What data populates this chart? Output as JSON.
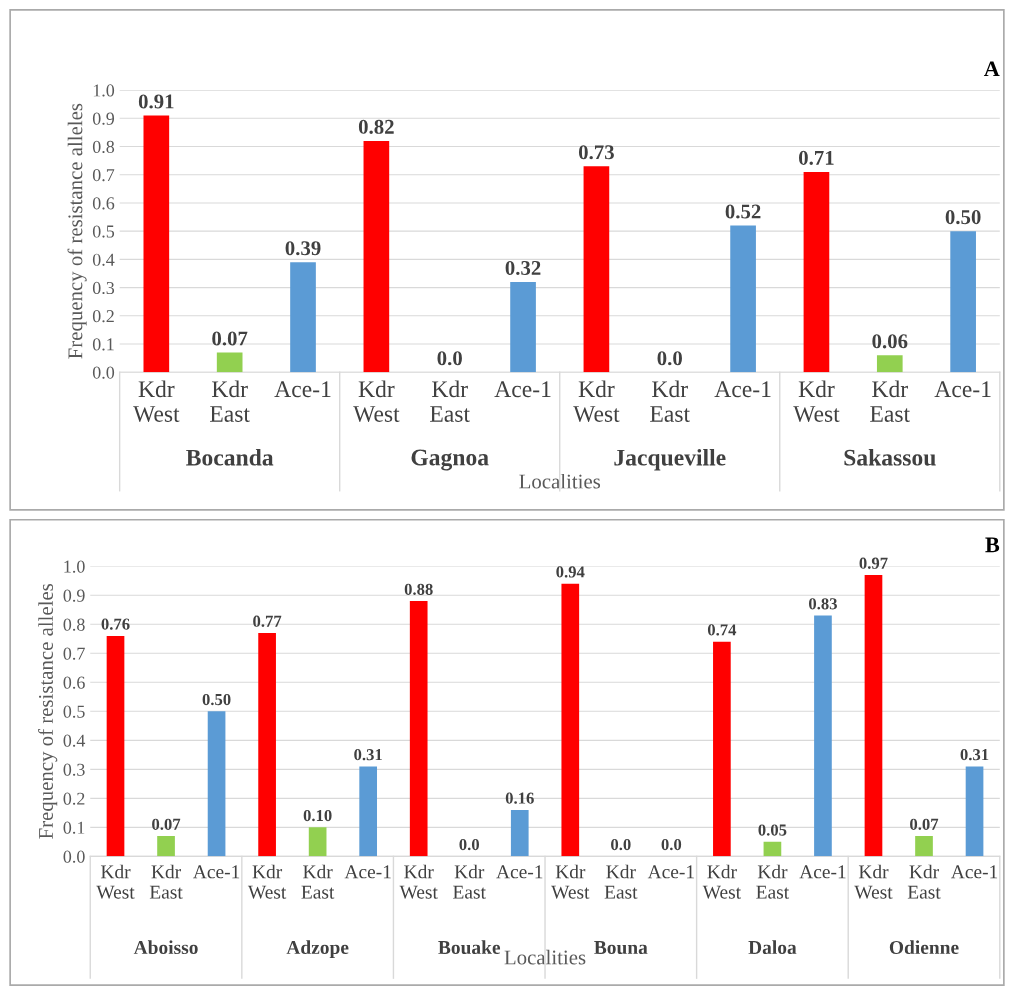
{
  "chart_data": [
    {
      "type": "bar",
      "title": "A",
      "ylabel": "Frequency of resistance alleles",
      "xlabel": "Localities",
      "categories": [
        "Kdr West",
        "Kdr East",
        "Ace-1",
        "Kdr West",
        "Kdr East",
        "Ace-1",
        "Kdr West",
        "Kdr East",
        "Ace-1",
        "Kdr West",
        "Kdr East",
        "Ace-1"
      ],
      "values": [
        0.91,
        0.07,
        0.39,
        0.82,
        0.0,
        0.32,
        0.73,
        0.0,
        0.52,
        0.71,
        0.06,
        0.5
      ],
      "value_labels": [
        "0.91",
        "0.07",
        "0.39",
        "0.82",
        "0.0",
        "0.32",
        "0.73",
        "0.0",
        "0.52",
        "0.71",
        "0.06",
        "0.50"
      ],
      "colors": [
        "#ff0000",
        "#92d050",
        "#5b9bd5",
        "#ff0000",
        "#92d050",
        "#5b9bd5",
        "#ff0000",
        "#92d050",
        "#5b9bd5",
        "#ff0000",
        "#92d050",
        "#5b9bd5"
      ],
      "annotations": [
        "Bocanda",
        "Gagnoa",
        "Jacqueville",
        "Sakassou"
      ],
      "ylim": [
        0,
        1.0
      ],
      "yticks": [
        {
          "value": 0,
          "label": "0.0"
        },
        {
          "value": 0.1,
          "label": "0.1"
        },
        {
          "value": 0.2,
          "label": "0.2"
        },
        {
          "value": 0.3,
          "label": "0.3"
        },
        {
          "value": 0.4,
          "label": "0.4"
        },
        {
          "value": 0.5,
          "label": "0.5"
        },
        {
          "value": 0.6,
          "label": "0.6"
        },
        {
          "value": 0.7,
          "label": "0.7"
        },
        {
          "value": 0.8,
          "label": "0.8"
        },
        {
          "value": 0.9,
          "label": "0.9"
        },
        {
          "value": 1.0,
          "label": "1.0"
        }
      ],
      "grid": "y"
    },
    {
      "type": "bar",
      "title": "B",
      "ylabel": "Frequency of resistance alleles",
      "xlabel": "Localities",
      "categories": [
        "Kdr West",
        "Kdr East",
        "Ace-1",
        "Kdr West",
        "Kdr East",
        "Ace-1",
        "Kdr West",
        "Kdr East",
        "Ace-1",
        "Kdr West",
        "Kdr East",
        "Ace-1",
        "Kdr West",
        "Kdr East",
        "Ace-1",
        "Kdr West",
        "Kdr East",
        "Ace-1"
      ],
      "values": [
        0.76,
        0.07,
        0.5,
        0.77,
        0.1,
        0.31,
        0.88,
        0.0,
        0.16,
        0.94,
        0.0,
        0.0,
        0.74,
        0.05,
        0.83,
        0.97,
        0.07,
        0.31
      ],
      "value_labels": [
        "0.76",
        "0.07",
        "0.50",
        "0.77",
        "0.10",
        "0.31",
        "0.88",
        "0.0",
        "0.16",
        "0.94",
        "0.0",
        "0.0",
        "0.74",
        "0.05",
        "0.83",
        "0.97",
        "0.07",
        "0.31"
      ],
      "colors": [
        "#ff0000",
        "#92d050",
        "#5b9bd5",
        "#ff0000",
        "#92d050",
        "#5b9bd5",
        "#ff0000",
        "#92d050",
        "#5b9bd5",
        "#ff0000",
        "#92d050",
        "#5b9bd5",
        "#ff0000",
        "#92d050",
        "#5b9bd5",
        "#ff0000",
        "#92d050",
        "#5b9bd5"
      ],
      "annotations": [
        "Aboisso",
        "Adzope",
        "Bouake",
        "Bouna",
        "Daloa",
        "Odienne"
      ],
      "ylim": [
        0,
        1.0
      ],
      "yticks": [
        {
          "value": 0,
          "label": "0.0"
        },
        {
          "value": 0.1,
          "label": "0.1"
        },
        {
          "value": 0.2,
          "label": "0.2"
        },
        {
          "value": 0.3,
          "label": "0.3"
        },
        {
          "value": 0.4,
          "label": "0.4"
        },
        {
          "value": 0.5,
          "label": "0.5"
        },
        {
          "value": 0.6,
          "label": "0.6"
        },
        {
          "value": 0.7,
          "label": "0.7"
        },
        {
          "value": 0.8,
          "label": "0.8"
        },
        {
          "value": 0.9,
          "label": "0.9"
        },
        {
          "value": 1.0,
          "label": "1.0"
        }
      ],
      "grid": "y"
    }
  ]
}
